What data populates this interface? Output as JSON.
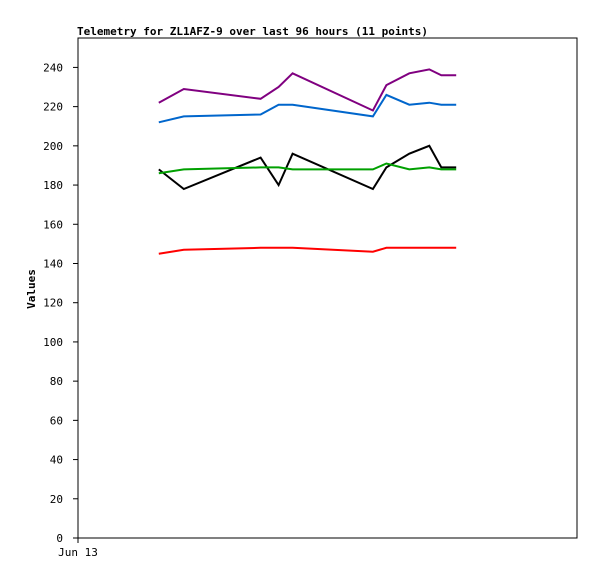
{
  "chart_data": {
    "type": "line",
    "title": "Telemetry for ZL1AFZ-9 over last 96 hours (11 points)",
    "xlabel": "",
    "ylabel": "Values",
    "ylim": [
      0,
      255
    ],
    "yticks": [
      0,
      20,
      40,
      60,
      80,
      100,
      120,
      140,
      160,
      180,
      200,
      220,
      240
    ],
    "xlim": [
      0,
      100
    ],
    "xticks": [
      {
        "x": 0,
        "label": "Jun 13"
      }
    ],
    "grid": false,
    "legend": "none",
    "x": [
      16.2,
      21.2,
      36.6,
      40.2,
      43.0,
      59.1,
      61.8,
      66.4,
      70.4,
      72.8,
      75.8
    ],
    "series": [
      {
        "color": "#800080",
        "values": [
          222,
          229,
          224,
          230,
          237,
          218,
          231,
          237,
          239,
          236,
          236
        ]
      },
      {
        "color": "#0066cc",
        "values": [
          212,
          215,
          216,
          221,
          221,
          215,
          226,
          221,
          222,
          221,
          221
        ]
      },
      {
        "color": "#000000",
        "values": [
          188,
          178,
          194,
          180,
          196,
          178,
          189,
          196,
          200,
          189,
          189
        ]
      },
      {
        "color": "#00a000",
        "values": [
          186,
          188,
          189,
          189,
          188,
          188,
          191,
          188,
          189,
          188,
          188
        ]
      },
      {
        "color": "#ff0000",
        "values": [
          145,
          147,
          148,
          148,
          148,
          146,
          148,
          148,
          148,
          148,
          148
        ]
      }
    ]
  }
}
